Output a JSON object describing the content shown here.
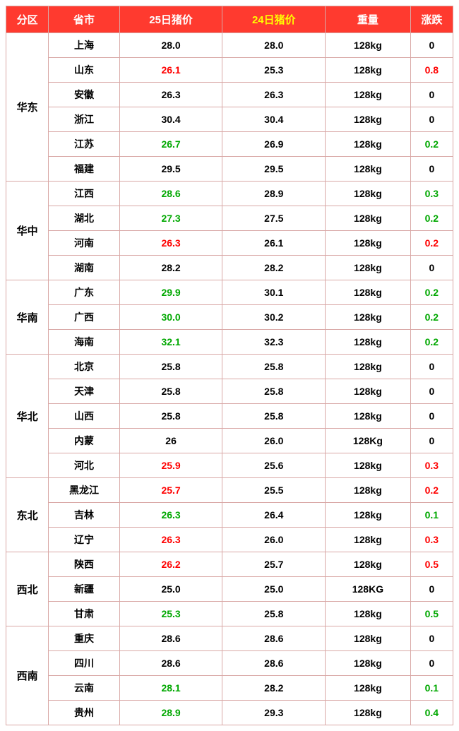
{
  "header": {
    "region": "分区",
    "province": "省市",
    "price25": "25日猪价",
    "price24": "24日猪价",
    "weight": "重量",
    "change": "涨跌"
  },
  "colors": {
    "header_bg": "#ff3a2f",
    "header_fg": "#ffffff",
    "header_highlight_fg": "#ffff00",
    "border": "#d9a8a6",
    "up": "#ff0000",
    "down": "#00a800",
    "neutral": "#000000"
  },
  "regions": [
    {
      "name": "华东",
      "rows": [
        {
          "prov": "上海",
          "p25": "28.0",
          "p25c": "n",
          "p24": "28.0",
          "wt": "128kg",
          "chg": "0",
          "chgc": "n"
        },
        {
          "prov": "山东",
          "p25": "26.1",
          "p25c": "r",
          "p24": "25.3",
          "wt": "128kg",
          "chg": "0.8",
          "chgc": "r"
        },
        {
          "prov": "安徽",
          "p25": "26.3",
          "p25c": "n",
          "p24": "26.3",
          "wt": "128kg",
          "chg": "0",
          "chgc": "n"
        },
        {
          "prov": "浙江",
          "p25": "30.4",
          "p25c": "n",
          "p24": "30.4",
          "wt": "128kg",
          "chg": "0",
          "chgc": "n"
        },
        {
          "prov": "江苏",
          "p25": "26.7",
          "p25c": "g",
          "p24": "26.9",
          "wt": "128kg",
          "chg": "0.2",
          "chgc": "g"
        },
        {
          "prov": "福建",
          "p25": "29.5",
          "p25c": "n",
          "p24": "29.5",
          "wt": "128kg",
          "chg": "0",
          "chgc": "n"
        }
      ]
    },
    {
      "name": "华中",
      "rows": [
        {
          "prov": "江西",
          "p25": "28.6",
          "p25c": "g",
          "p24": "28.9",
          "wt": "128kg",
          "chg": "0.3",
          "chgc": "g"
        },
        {
          "prov": "湖北",
          "p25": "27.3",
          "p25c": "g",
          "p24": "27.5",
          "wt": "128kg",
          "chg": "0.2",
          "chgc": "g"
        },
        {
          "prov": "河南",
          "p25": "26.3",
          "p25c": "r",
          "p24": "26.1",
          "wt": "128kg",
          "chg": "0.2",
          "chgc": "r"
        },
        {
          "prov": "湖南",
          "p25": "28.2",
          "p25c": "n",
          "p24": "28.2",
          "wt": "128kg",
          "chg": "0",
          "chgc": "n"
        }
      ]
    },
    {
      "name": "华南",
      "rows": [
        {
          "prov": "广东",
          "p25": "29.9",
          "p25c": "g",
          "p24": "30.1",
          "wt": "128kg",
          "chg": "0.2",
          "chgc": "g"
        },
        {
          "prov": "广西",
          "p25": "30.0",
          "p25c": "g",
          "p24": "30.2",
          "wt": "128kg",
          "chg": "0.2",
          "chgc": "g"
        },
        {
          "prov": "海南",
          "p25": "32.1",
          "p25c": "g",
          "p24": "32.3",
          "wt": "128kg",
          "chg": "0.2",
          "chgc": "g"
        }
      ]
    },
    {
      "name": "华北",
      "rows": [
        {
          "prov": "北京",
          "p25": "25.8",
          "p25c": "n",
          "p24": "25.8",
          "wt": "128kg",
          "chg": "0",
          "chgc": "n"
        },
        {
          "prov": "天津",
          "p25": "25.8",
          "p25c": "n",
          "p24": "25.8",
          "wt": "128kg",
          "chg": "0",
          "chgc": "n"
        },
        {
          "prov": "山西",
          "p25": "25.8",
          "p25c": "n",
          "p24": "25.8",
          "wt": "128kg",
          "chg": "0",
          "chgc": "n"
        },
        {
          "prov": "内蒙",
          "p25": "26",
          "p25c": "n",
          "p24": "26.0",
          "wt": "128Kg",
          "chg": "0",
          "chgc": "n"
        },
        {
          "prov": "河北",
          "p25": "25.9",
          "p25c": "r",
          "p24": "25.6",
          "wt": "128kg",
          "chg": "0.3",
          "chgc": "r"
        }
      ]
    },
    {
      "name": "东北",
      "rows": [
        {
          "prov": "黑龙江",
          "p25": "25.7",
          "p25c": "r",
          "p24": "25.5",
          "wt": "128kg",
          "chg": "0.2",
          "chgc": "r"
        },
        {
          "prov": "吉林",
          "p25": "26.3",
          "p25c": "g",
          "p24": "26.4",
          "wt": "128kg",
          "chg": "0.1",
          "chgc": "g"
        },
        {
          "prov": "辽宁",
          "p25": "26.3",
          "p25c": "r",
          "p24": "26.0",
          "wt": "128kg",
          "chg": "0.3",
          "chgc": "r"
        }
      ]
    },
    {
      "name": "西北",
      "rows": [
        {
          "prov": "陕西",
          "p25": "26.2",
          "p25c": "r",
          "p24": "25.7",
          "wt": "128kg",
          "chg": "0.5",
          "chgc": "r"
        },
        {
          "prov": "新疆",
          "p25": "25.0",
          "p25c": "n",
          "p24": "25.0",
          "wt": "128KG",
          "chg": "0",
          "chgc": "n"
        },
        {
          "prov": "甘肃",
          "p25": "25.3",
          "p25c": "g",
          "p24": "25.8",
          "wt": "128kg",
          "chg": "0.5",
          "chgc": "g"
        }
      ]
    },
    {
      "name": "西南",
      "rows": [
        {
          "prov": "重庆",
          "p25": "28.6",
          "p25c": "n",
          "p24": "28.6",
          "wt": "128kg",
          "chg": "0",
          "chgc": "n"
        },
        {
          "prov": "四川",
          "p25": "28.6",
          "p25c": "n",
          "p24": "28.6",
          "wt": "128kg",
          "chg": "0",
          "chgc": "n"
        },
        {
          "prov": "云南",
          "p25": "28.1",
          "p25c": "g",
          "p24": "28.2",
          "wt": "128kg",
          "chg": "0.1",
          "chgc": "g"
        },
        {
          "prov": "贵州",
          "p25": "28.9",
          "p25c": "g",
          "p24": "29.3",
          "wt": "128kg",
          "chg": "0.4",
          "chgc": "g"
        }
      ]
    }
  ]
}
